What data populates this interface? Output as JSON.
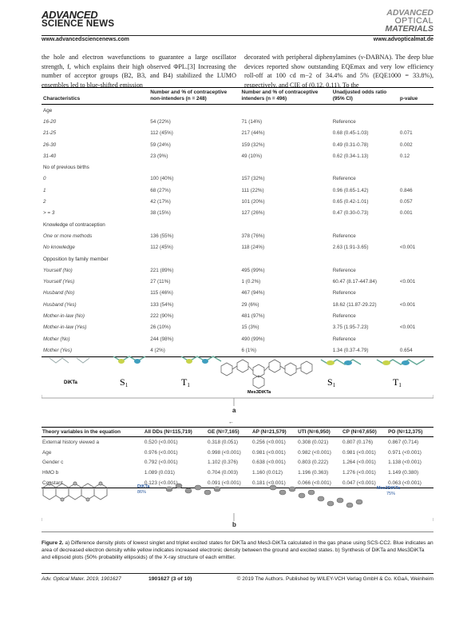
{
  "header": {
    "journal_left_line1": "ADVANCED",
    "journal_left_line2": "SCIENCE NEWS",
    "journal_right_line1": "ADVANCED",
    "journal_right_line2": "OPTICAL",
    "journal_right_line3": "MATERIALS",
    "url_left": "www.advancedsciencenews.com",
    "url_right": "www.advopticalmat.de"
  },
  "body": {
    "col_left": "the hole and electron wavefunctions to guarantee a large oscillator strength, f, which explains their high observed ΦPL.[3] Increasing the number of acceptor groups (B2, B3, and B4) stabilized the LUMO ensembles led to blue-shifted emission",
    "col_right": "decorated with peripheral diphenylamines (ν-DABNA). The deep blue devices reported show outstanding EQEmax and very low efficiency roll-off at 100 cd m−2 of 34.4% and 5% (EQE1000 = 33.8%), respectively, and CIE of (0.12, 0.11). To the"
  },
  "table1": {
    "headers": [
      "Characteristics",
      "Number and % of contraceptive non-intenders (n = 248)",
      "Number and % of contraceptive intenders (n = 496)",
      "Unadjusted odds ratio (95% CI)",
      "p-value"
    ],
    "rows": [
      {
        "type": "sec",
        "c": [
          "Age",
          "",
          "",
          "",
          ""
        ]
      },
      {
        "type": "it",
        "c": [
          "16-20",
          "54 (22%)",
          "71 (14%)",
          "Reference",
          ""
        ]
      },
      {
        "type": "it",
        "c": [
          "21-25",
          "112 (45%)",
          "217 (44%)",
          "0.68 (0.45-1.03)",
          "0.071"
        ]
      },
      {
        "type": "it",
        "c": [
          "26-30",
          "59 (24%)",
          "159 (32%)",
          "0.49 (0.31-0.78)",
          "0.002"
        ]
      },
      {
        "type": "it",
        "c": [
          "31-40",
          "23 (9%)",
          "49 (10%)",
          "0.62 (0.34-1.13)",
          "0.12"
        ]
      },
      {
        "type": "sec",
        "c": [
          "No of previous births",
          "",
          "",
          "",
          ""
        ]
      },
      {
        "type": "it",
        "c": [
          "0",
          "100 (40%)",
          "157 (32%)",
          "Reference",
          ""
        ]
      },
      {
        "type": "it",
        "c": [
          "1",
          "68 (27%)",
          "111 (22%)",
          "0.96 (0.65-1.42)",
          "0.846"
        ]
      },
      {
        "type": "it",
        "c": [
          "2",
          "42 (17%)",
          "101 (20%)",
          "0.65 (0.42-1.01)",
          "0.057"
        ]
      },
      {
        "type": "it",
        "c": [
          "> = 3",
          "38 (15%)",
          "127 (26%)",
          "0.47 (0.30-0.73)",
          "0.001"
        ]
      },
      {
        "type": "sec",
        "c": [
          "Knowledge of contraception",
          "",
          "",
          "",
          ""
        ]
      },
      {
        "type": "it",
        "c": [
          "One or more methods",
          "136 (55%)",
          "378 (76%)",
          "Reference",
          ""
        ]
      },
      {
        "type": "it",
        "c": [
          "No knowledge",
          "112 (45%)",
          "118 (24%)",
          "2.63 (1.91-3.65)",
          "<0.001"
        ]
      },
      {
        "type": "sec",
        "c": [
          "Opposition by family member",
          "",
          "",
          "",
          ""
        ]
      },
      {
        "type": "it",
        "c": [
          "Yourself (No)",
          "221 (89%)",
          "495 (99%)",
          "Reference",
          ""
        ]
      },
      {
        "type": "it",
        "c": [
          "Yourself (Yes)",
          "27 (11%)",
          "1 (0.2%)",
          "60.47 (8.17-447.84)",
          "<0.001"
        ]
      },
      {
        "type": "it",
        "c": [
          "Husband (No)",
          "115 (46%)",
          "467 (94%)",
          "Reference",
          ""
        ]
      },
      {
        "type": "it",
        "c": [
          "Husband (Yes)",
          "133 (54%)",
          "29 (6%)",
          "18.62 (11.87-29.22)",
          "<0.001"
        ]
      },
      {
        "type": "it",
        "c": [
          "Mother-in-law (No)",
          "222 (90%)",
          "481 (97%)",
          "Reference",
          ""
        ]
      },
      {
        "type": "it",
        "c": [
          "Mother-in-law (Yes)",
          "26 (10%)",
          "15 (3%)",
          "3.75 (1.95-7.23)",
          "<0.001"
        ]
      },
      {
        "type": "it",
        "c": [
          "Mother (No)",
          "244 (98%)",
          "490 (99%)",
          "Reference",
          ""
        ]
      },
      {
        "type": "it",
        "c": [
          "Mother (Yes)",
          "4 (2%)",
          "6 (1%)",
          "1.34 (0.37-4.79)",
          "0.654"
        ]
      }
    ]
  },
  "figure_a": {
    "label_dikta": "DiKTa",
    "label_s1_left": "S",
    "label_t1_left": "T",
    "label_mes": "Mes3DiKTa",
    "label_s1_right": "S",
    "label_t1_right": "T",
    "sub1": "1",
    "panel": "a",
    "arrow": "←"
  },
  "table2": {
    "headers": [
      "Theory variables in the equation",
      "All DDs (N=115,719)",
      "GE (N=7,165)",
      "AP (N=21,579)",
      "UTI (N=6,950)",
      "CP (N=67,650)",
      "PO (N=12,375)"
    ],
    "rows": [
      [
        "External history viewed a",
        "0.520 (<0.001)",
        "0.318 (0.051)",
        "0.256 (<0.001)",
        "0.308 (0.021)",
        "0.807 (0.176)",
        "0.867 (0.714)"
      ],
      [
        "Age",
        "0.976 (<0.001)",
        "0.998 (<0.001)",
        "0.981 (<0.001)",
        "0.982 (<0.001)",
        "0.981 (<0.001)",
        "0.971 (<0.001)"
      ],
      [
        "Gender c",
        "0.792 (<0.001)",
        "1.102 (0.376)",
        "0.638 (<0.001)",
        "0.803 (0.222)",
        "1.264 (<0.001)",
        "1.138 (<0.001)"
      ],
      [
        "HMO b",
        "1.089 (0.031)",
        "0.704 (0.003)",
        "1.160 (0.012)",
        "1.196 (0.363)",
        "1.276 (<0.001)",
        "1.149 (0.380)"
      ],
      [
        "Constant",
        "0.123 (<0.001)",
        "0.091 (<0.001)",
        "0.181 (<0.001)",
        "0.066 (<0.001)",
        "0.047 (<0.001)",
        "0.063 (<0.001)"
      ]
    ]
  },
  "figure_b": {
    "label_dikta": "DiKTa",
    "pct_dikta": "86%",
    "label_mes": "Mes3DiKTa",
    "pct_mes": "75%",
    "panel": "b"
  },
  "caption": {
    "label": "Figure 2.",
    "text": " a) Difference density plots of lowest singlet and triplet excited states for DiKTa and Mes3-DiKTa calculated in the gas phase using SCS-CC2. Blue indicates an area of decreased electron density while yellow indicates increased electronic density between the ground and excited states. b) Synthesis of DiKTa and Mes3DiKTa and ellipsoid plots (50% probability ellipsoids) of the X-ray structure of each emitter."
  },
  "footer": {
    "left": "Adv. Optical Mater. 2019, 1901627",
    "center": "1901627  (3 of 10)",
    "right": "© 2019 The Authors. Published by WILEY-VCH Verlag GmbH & Co. KGaA, Weinheim"
  }
}
